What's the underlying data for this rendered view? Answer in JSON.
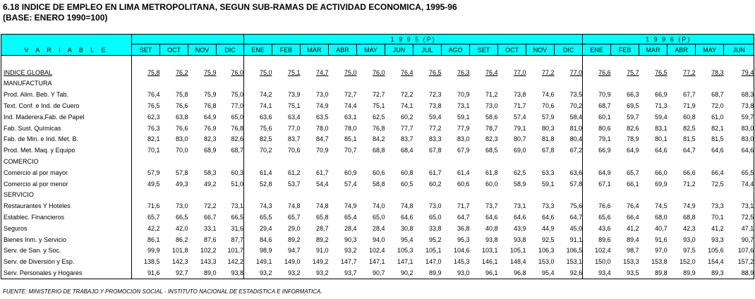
{
  "title": "6.18  INDICE DE EMPLEO EN LIMA METROPOLITANA, SEGUN SUB-RAMAS DE ACTIVIDAD ECONOMICA, 1995-96",
  "subtitle": "(BASE: ENERO 1990=100)",
  "header": {
    "variable_label": "V A R I A B L E",
    "year_1995": "1 9 9 5 (P)",
    "year_1996": "1 9 9 6 (P)",
    "months_1994": [
      "SET",
      "OCT",
      "NOV",
      "DIC"
    ],
    "months_1995": [
      "ENE",
      "FEB",
      "MAR",
      "ABR",
      "MAY",
      "JUN",
      "JUL",
      "AGO",
      "SET",
      "OCT",
      "NOV",
      "DIC"
    ],
    "months_1996": [
      "ENE",
      "FEB",
      "MAR",
      "ABR",
      "MAY",
      "JUN"
    ]
  },
  "rows": [
    {
      "label": "INDICE  GLOBAL",
      "kind": "global",
      "values": [
        "75,8",
        "76,2",
        "75,9",
        "76,0",
        "75,0",
        "75,1",
        "74,7",
        "75,0",
        "76,0",
        "76,4",
        "76,5",
        "76,3",
        "76,4",
        "77,0",
        "77,2",
        "77,0",
        "76,6",
        "75,7",
        "76,5",
        "77,2",
        "78,3",
        "79,4"
      ]
    },
    {
      "label": "MANUFACTURA",
      "kind": "section",
      "values": []
    },
    {
      "label": "Prod. Alim. Beb. Y Tab.",
      "kind": "item",
      "values": [
        "76,4",
        "75,8",
        "75,9",
        "75,0",
        "74,2",
        "73,9",
        "73,0",
        "72,7",
        "72,7",
        "72,2",
        "72,3",
        "70,9",
        "71,2",
        "73,8",
        "74,6",
        "73,5",
        "70,9",
        "66,3",
        "66,9",
        "67,7",
        "68,7",
        "68,3"
      ]
    },
    {
      "label": "Text. Conf. e Ind. de Cuero",
      "kind": "item",
      "values": [
        "76,5",
        "76,6",
        "76,8",
        "77,0",
        "74,1",
        "75,1",
        "74,9",
        "74,4",
        "75,1",
        "74,1",
        "73,8",
        "73,1",
        "73,0",
        "71,7",
        "70,6",
        "70,2",
        "68,7",
        "69,5",
        "71,3",
        "71,9",
        "72,0",
        "73,8"
      ]
    },
    {
      "label": "Ind. Maderera,Fab. de Papel",
      "kind": "item",
      "values": [
        "62,3",
        "63,8",
        "64,9",
        "65,0",
        "63,6",
        "63,4",
        "63,5",
        "63,1",
        "62,5",
        "60,2",
        "59,4",
        "59,1",
        "58,6",
        "57,4",
        "57,9",
        "58,4",
        "60,1",
        "59,7",
        "59,4",
        "60,8",
        "61,0",
        "59,7"
      ]
    },
    {
      "label": "Fab. Sust. Químicas",
      "kind": "item",
      "values": [
        "76,3",
        "76,6",
        "76,9",
        "76,8",
        "75,6",
        "77,0",
        "78,0",
        "78,0",
        "76,8",
        "77,7",
        "77,2",
        "77,9",
        "78,7",
        "79,1",
        "80,3",
        "81,0",
        "80,6",
        "82,6",
        "83,1",
        "82,5",
        "82,1",
        "83,0"
      ]
    },
    {
      "label": "Fab. de Min. e Ind. Met. B.",
      "kind": "item",
      "values": [
        "82,1",
        "83,0",
        "82,3",
        "82,6",
        "82,5",
        "83,7",
        "84,7",
        "85,1",
        "84,2",
        "83,7",
        "83,3",
        "83,0",
        "82,3",
        "80,7",
        "81,8",
        "80,4",
        "79,1",
        "78,9",
        "80,1",
        "81,5",
        "81,5",
        "83,0"
      ]
    },
    {
      "label": "Prod. Met. Maq. y Equipo",
      "kind": "item",
      "values": [
        "70,1",
        "70,0",
        "68,9",
        "68,7",
        "70,2",
        "70,6",
        "70,9",
        "70,7",
        "68,8",
        "68,4",
        "67,8",
        "67,9",
        "68,5",
        "69,0",
        "67,8",
        "67,2",
        "66,9",
        "64,9",
        "64,6",
        "64,7",
        "64,6",
        "64,6"
      ]
    },
    {
      "label": "COMERCIO",
      "kind": "section",
      "values": []
    },
    {
      "label": "Comercio al por mayor",
      "kind": "item",
      "values": [
        "57,9",
        "57,8",
        "58,3",
        "60,3",
        "61,4",
        "61,2",
        "61,7",
        "60,9",
        "60,6",
        "60,8",
        "61,7",
        "61,4",
        "61,8",
        "62,5",
        "63,3",
        "63,6",
        "64,9",
        "65,7",
        "66,0",
        "66,6",
        "66,4",
        "65,5"
      ]
    },
    {
      "label": "Comercio al por menor",
      "kind": "item",
      "values": [
        "49,5",
        "49,3",
        "49,2",
        "51,0",
        "52,8",
        "53,7",
        "54,4",
        "57,4",
        "58,8",
        "60,5",
        "60,2",
        "60,6",
        "60,0",
        "58,9",
        "59,1",
        "57,8",
        "67,1",
        "66,1",
        "69,9",
        "71,2",
        "72,5",
        "74,4"
      ]
    },
    {
      "label": "SERVICIO",
      "kind": "section",
      "values": []
    },
    {
      "label": "Restaurantes Y Hoteles",
      "kind": "item",
      "values": [
        "71,6",
        "73,0",
        "72,2",
        "73,1",
        "74,3",
        "74,8",
        "74,8",
        "74,9",
        "74,0",
        "74,8",
        "73,0",
        "71,7",
        "73,7",
        "73,1",
        "73,3",
        "75,6",
        "76,6",
        "76,4",
        "74,5",
        "74,9",
        "73,3",
        "73,1"
      ]
    },
    {
      "label": "Establec. Financieros",
      "kind": "item",
      "values": [
        "65,7",
        "66,5",
        "66,7",
        "66,5",
        "65,5",
        "65,7",
        "65,8",
        "65,4",
        "65,0",
        "64,6",
        "65,0",
        "64,7",
        "64,6",
        "64,6",
        "64,6",
        "64,7",
        "65,6",
        "66,4",
        "68,0",
        "68,8",
        "70,1",
        "72,5"
      ]
    },
    {
      "label": "Seguros",
      "kind": "item",
      "values": [
        "42,2",
        "42,0",
        "33,1",
        "31,6",
        "29,4",
        "29,0",
        "28,7",
        "28,4",
        "28,4",
        "30,8",
        "33,8",
        "36,8",
        "40,8",
        "43,9",
        "44,9",
        "45,0",
        "43,6",
        "41,2",
        "40,7",
        "42,3",
        "41,2",
        "47,1"
      ]
    },
    {
      "label": "Bienes Inm. y Servicio",
      "kind": "item",
      "values": [
        "86,1",
        "86,2",
        "87,6",
        "87,7",
        "84,6",
        "89,2",
        "89,2",
        "90,3",
        "94,0",
        "95,4",
        "95,2",
        "95,3",
        "93,8",
        "93,8",
        "92,5",
        "91,1",
        "89,6",
        "89,4",
        "91,6",
        "93,0",
        "93,3",
        "90,7"
      ]
    },
    {
      "label": "Serv. de San. y Soc.",
      "kind": "item",
      "values": [
        "99,9",
        "101,8",
        "102,2",
        "101,7",
        "98,9",
        "94,7",
        "91,0",
        "93,2",
        "102,4",
        "105,3",
        "105,1",
        "104,6",
        "103,1",
        "105,1",
        "106,3",
        "106,5",
        "102,4",
        "98,7",
        "97,0",
        "97,5",
        "105,6",
        "107,6"
      ]
    },
    {
      "label": "Serv. de Diversión y Esp.",
      "kind": "item",
      "values": [
        "138,5",
        "142,3",
        "143,3",
        "142,2",
        "149,1",
        "149,0",
        "149,2",
        "147,7",
        "147,1",
        "147,1",
        "147,0",
        "145,3",
        "146,1",
        "148,4",
        "153,0",
        "153,1",
        "150,0",
        "153,3",
        "153,8",
        "152,0",
        "154,4",
        "157,2"
      ]
    },
    {
      "label": "Serv. Personales y Hogares",
      "kind": "item",
      "values": [
        "91,6",
        "92,7",
        "89,0",
        "93,8",
        "93,2",
        "93,2",
        "93,2",
        "93,7",
        "90,7",
        "90,2",
        "89,9",
        "93,0",
        "96,1",
        "96,8",
        "95,4",
        "92,6",
        "93,4",
        "93,5",
        "89,8",
        "89,9",
        "89,3",
        "88,9"
      ]
    }
  ],
  "source": "FUENTE: MINISTERIO DE TRABAJO Y PROMOCION SOCIAL - INSTITUTO NACIONAL DE ESTADISTICA E INFORMATICA."
}
